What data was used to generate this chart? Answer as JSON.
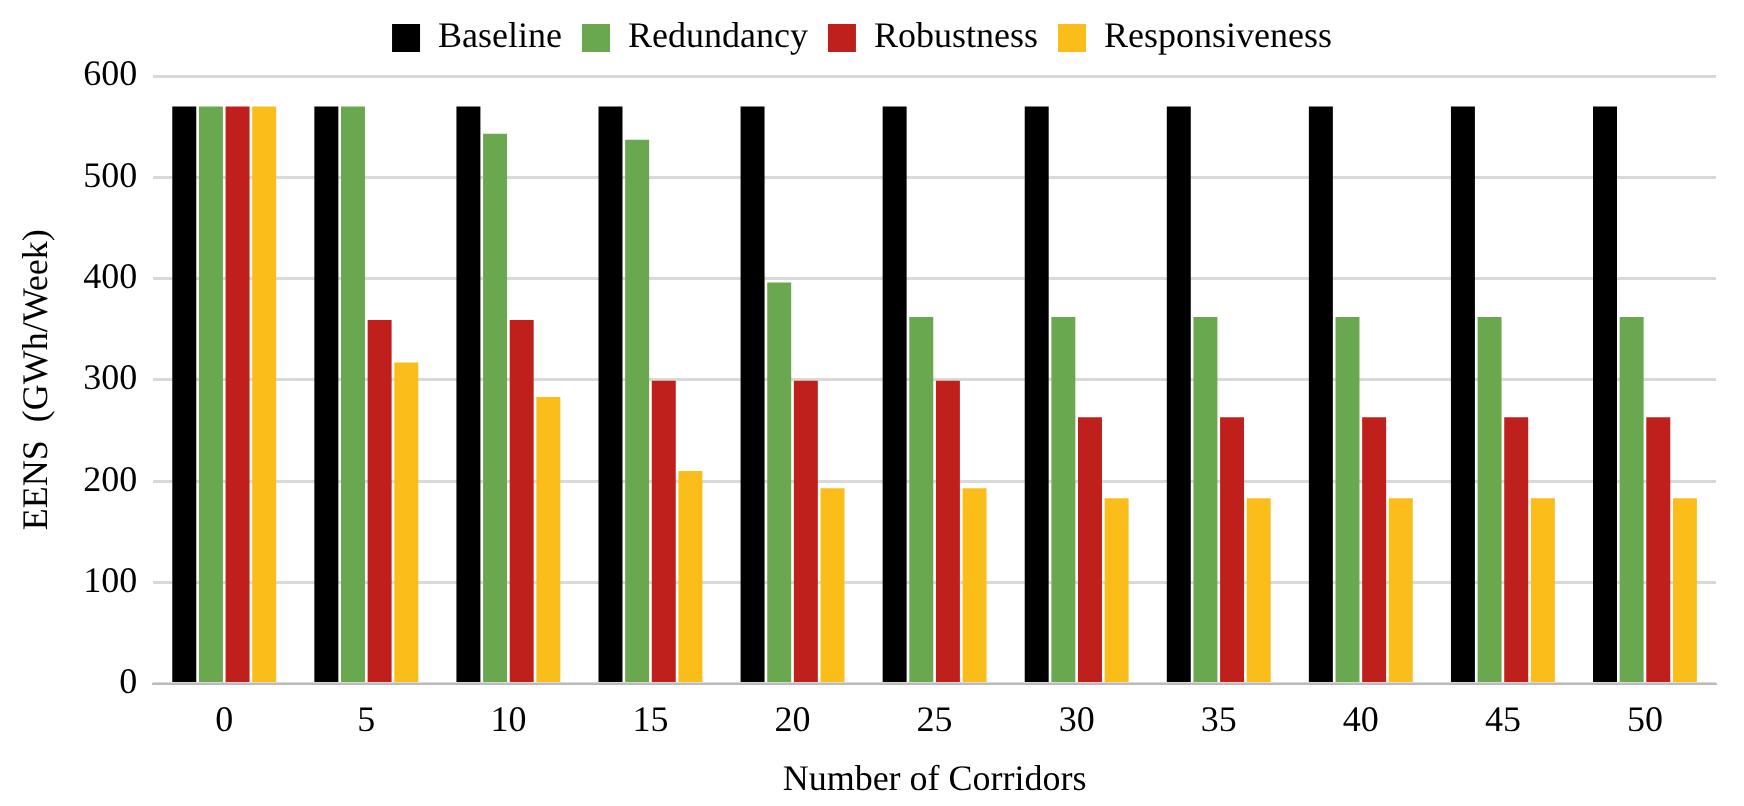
{
  "chart_data": {
    "type": "bar",
    "xlabel": "Number of Corridors",
    "ylabel": "EENS  (GWh/Week)",
    "categories": [
      "0",
      "5",
      "10",
      "15",
      "20",
      "25",
      "30",
      "35",
      "40",
      "45",
      "50"
    ],
    "series": [
      {
        "name": "Baseline",
        "color": "#000000",
        "values": [
          570,
          570,
          570,
          570,
          570,
          570,
          570,
          570,
          570,
          570,
          570
        ]
      },
      {
        "name": "Redundancy",
        "color": "#6aa84f",
        "values": [
          570,
          570,
          543,
          537,
          396,
          362,
          362,
          362,
          362,
          362,
          362
        ]
      },
      {
        "name": "Robustness",
        "color": "#c0201c",
        "values": [
          570,
          359,
          359,
          299,
          299,
          299,
          263,
          263,
          263,
          263,
          263
        ]
      },
      {
        "name": "Responsiveness",
        "color": "#fbbd1a",
        "values": [
          570,
          317,
          283,
          210,
          193,
          193,
          183,
          183,
          183,
          183,
          183
        ]
      }
    ],
    "ylim": [
      0,
      600
    ],
    "yticks": [
      0,
      100,
      200,
      300,
      400,
      500,
      600
    ],
    "grid": "y",
    "legend": "top"
  }
}
